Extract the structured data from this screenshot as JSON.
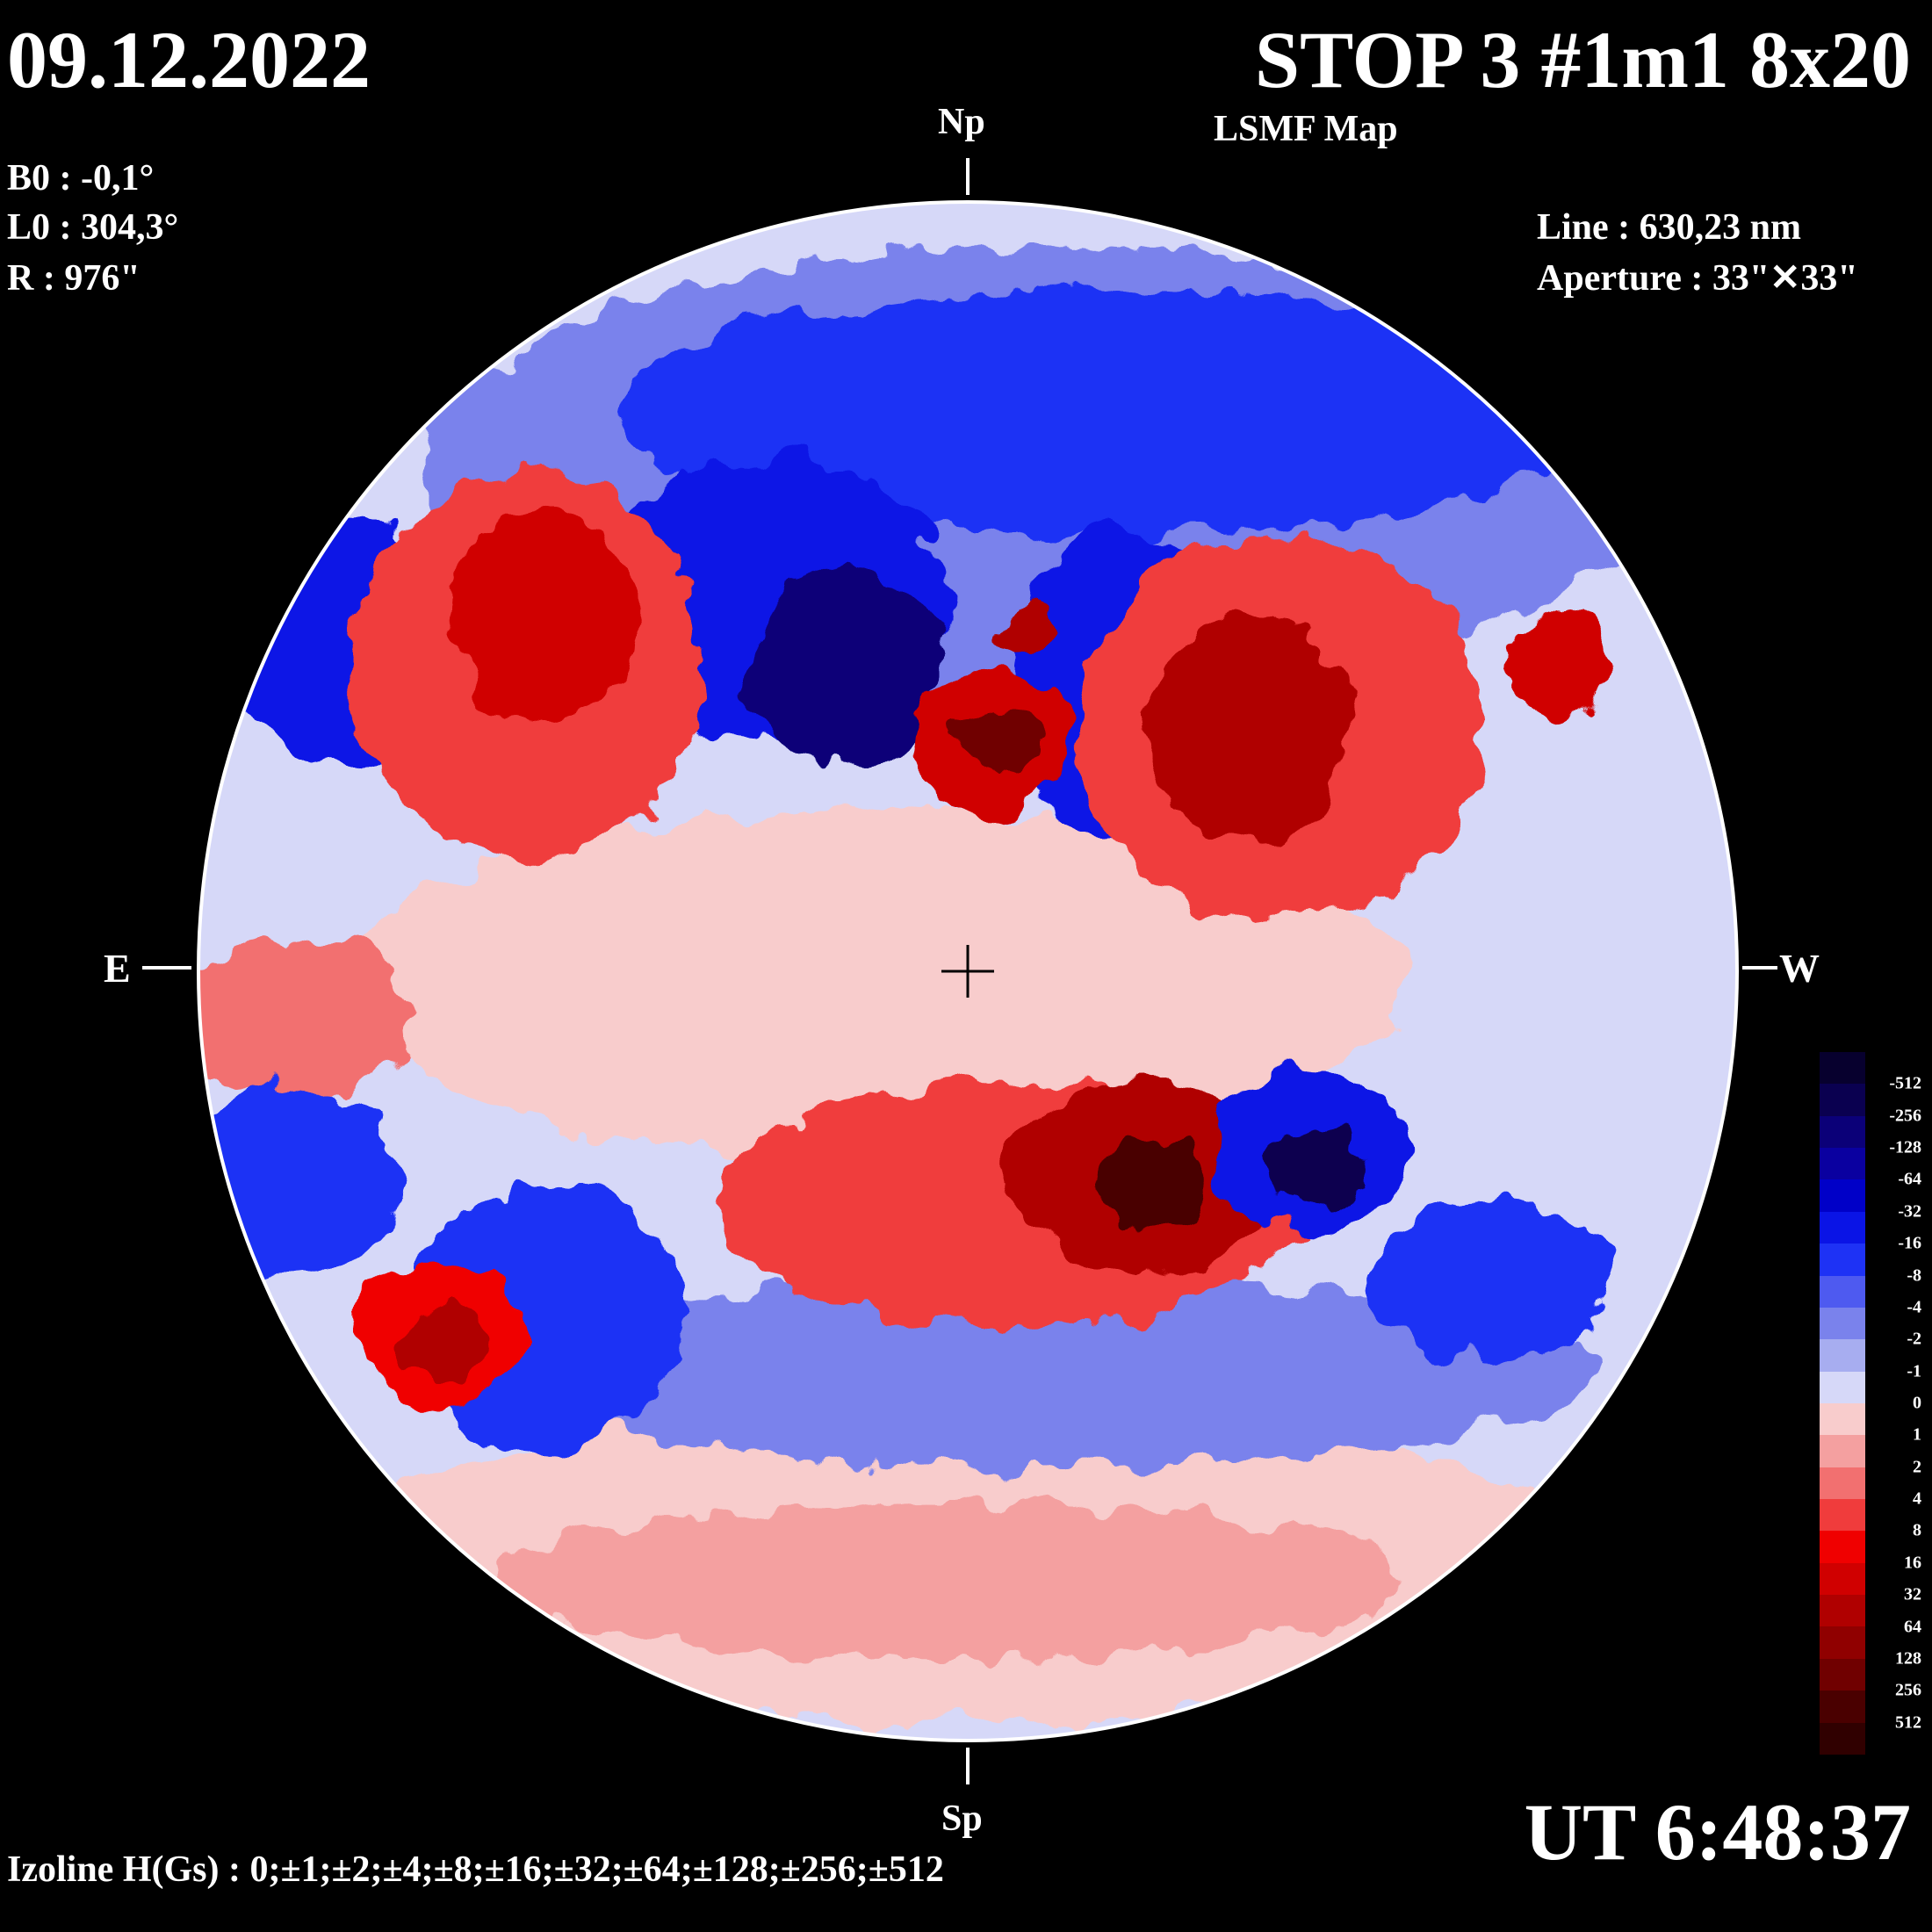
{
  "header": {
    "date": "09.12.2022",
    "title": "STOP 3 #1m1 8x20",
    "subtitle": "LSMF  Map"
  },
  "params": {
    "b0": "B0 : -0,1°",
    "l0": "L0 : 304,3°",
    "radius": "R  : 976\"",
    "line": "Line :  630,23 nm",
    "aperture": "Aperture : 33\"✕33\""
  },
  "directions": {
    "north": "Np",
    "south": "Sp",
    "east": "E",
    "west": "W"
  },
  "footer": {
    "izoline": "Izoline H(Gs) : 0;±1;±2;±4;±8;±16;±32;±64;±128;±256;±512",
    "ut": "UT 6:48:37"
  },
  "colors": {
    "background": "#000000",
    "text": "#ffffff",
    "isoline": "#ffffff",
    "neg_bg": "#c8c8f5",
    "pos_bg": "#f8c8c8"
  },
  "colorbar": {
    "labels": [
      "-512",
      "-256",
      "-128",
      "-64",
      "-32",
      "-16",
      "-8",
      "-4",
      "-2",
      "-1",
      "0",
      "1",
      "2",
      "4",
      "8",
      "16",
      "32",
      "64",
      "128",
      "256",
      "512"
    ],
    "colors": [
      "#07002e",
      "#0a0050",
      "#0b0078",
      "#0a00a0",
      "#0000c8",
      "#0a14e6",
      "#1e32f5",
      "#4e5af0",
      "#7a82ec",
      "#a7adf0",
      "#d6d8f8",
      "#f8cccc",
      "#f4a0a0",
      "#f27070",
      "#f03c3c",
      "#f00000",
      "#d00000",
      "#b00000",
      "#900000",
      "#700000",
      "#4a0000",
      "#300000"
    ]
  }
}
